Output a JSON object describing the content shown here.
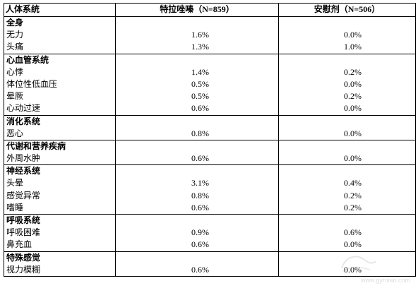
{
  "table": {
    "headers": [
      "人体系统",
      "特拉唑嗪（N=859）",
      "安慰剂（N=506）"
    ],
    "groups": [
      {
        "category": "全身",
        "items": [
          {
            "name": "无力",
            "drug": "1.6%",
            "placebo": "0.0%"
          },
          {
            "name": "头痛",
            "drug": "1.3%",
            "placebo": "1.0%"
          }
        ]
      },
      {
        "category": "心血管系统",
        "items": [
          {
            "name": "心悸",
            "drug": "1.4%",
            "placebo": "0.2%"
          },
          {
            "name": "体位性低血压",
            "drug": "0.5%",
            "placebo": "0.0%"
          },
          {
            "name": "晕厥",
            "drug": "0.5%",
            "placebo": "0.2%"
          },
          {
            "name": "心动过速",
            "drug": "0.6%",
            "placebo": "0.0%"
          }
        ]
      },
      {
        "category": "消化系统",
        "items": [
          {
            "name": "恶心",
            "drug": "0.8%",
            "placebo": "0.0%"
          }
        ]
      },
      {
        "category": "代谢和营养疾病",
        "items": [
          {
            "name": "外周水肿",
            "drug": "0.6%",
            "placebo": "0.0%"
          }
        ]
      },
      {
        "category": "神经系统",
        "items": [
          {
            "name": "头晕",
            "drug": "3.1%",
            "placebo": "0.4%"
          },
          {
            "name": "感觉异常",
            "drug": "0.8%",
            "placebo": "0.2%"
          },
          {
            "name": "嗜睡",
            "drug": "0.6%",
            "placebo": "0.2%"
          }
        ]
      },
      {
        "category": "呼吸系统",
        "items": [
          {
            "name": "呼吸困难",
            "drug": "0.9%",
            "placebo": "0.6%"
          },
          {
            "name": "鼻充血",
            "drug": "0.6%",
            "placebo": "0.0%"
          }
        ]
      },
      {
        "category": "特殊感觉",
        "items": [
          {
            "name": "视力模糊",
            "drug": "0.6%",
            "placebo": "0.0%"
          }
        ]
      }
    ]
  },
  "watermark": {
    "icon": "watermark-logo-icon",
    "text": "www.gymiao.com"
  }
}
